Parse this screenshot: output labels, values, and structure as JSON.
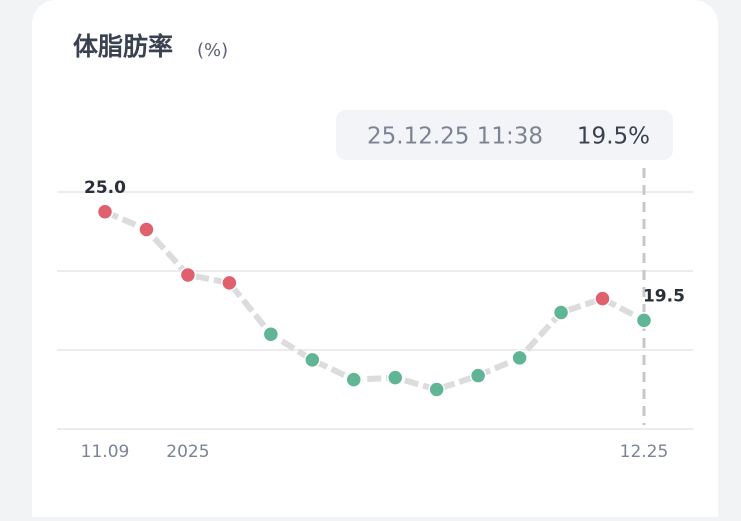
{
  "chart_data": {
    "type": "line",
    "title": "体脂肪率",
    "unit": "(%)",
    "categories": [
      "11.09",
      null,
      "2025",
      null,
      null,
      null,
      null,
      null,
      null,
      null,
      null,
      null,
      null,
      "12.25"
    ],
    "values": [
      25.0,
      24.1,
      21.8,
      21.4,
      18.8,
      17.5,
      16.5,
      16.6,
      16.0,
      16.7,
      17.6,
      19.9,
      20.6,
      19.5
    ],
    "value_labels": [
      "25.0",
      null,
      null,
      null,
      null,
      null,
      null,
      null,
      null,
      null,
      null,
      null,
      null,
      "19.5"
    ],
    "point_colors": [
      "#e0606e",
      "#e0606e",
      "#e0606e",
      "#e0606e",
      "#5fb594",
      "#5fb594",
      "#5fb594",
      "#5fb594",
      "#5fb594",
      "#5fb594",
      "#5fb594",
      "#5fb594",
      "#e0606e",
      "#5fb594"
    ],
    "line_color": "#dcdcdf",
    "ylim": [
      14,
      26
    ],
    "yticks": [
      14,
      18,
      22,
      26
    ],
    "grid": true,
    "tooltip": {
      "time": "25.12.25 11:38",
      "value": "19.5%"
    }
  }
}
